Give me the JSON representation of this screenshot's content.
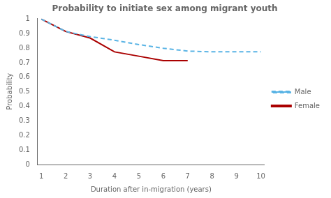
{
  "chart_data": {
    "type": "line",
    "title": "Probability to initiate sex among migrant youth",
    "xlabel": "Duration after in-migration (years)",
    "ylabel": "Probability",
    "xlim": [
      0.85,
      10.15
    ],
    "ylim": [
      0,
      1.005
    ],
    "xticks": [
      1,
      2,
      3,
      4,
      5,
      6,
      7,
      8,
      9,
      10
    ],
    "yticks": [
      0,
      0.1,
      0.2,
      0.3,
      0.4,
      0.5,
      0.6,
      0.7,
      0.8,
      0.9,
      1
    ],
    "grid": false,
    "legend": "right",
    "series": [
      {
        "name": "Male",
        "color": "#5ab4e5",
        "line_style": "dashed",
        "x": [
          1,
          2,
          3,
          4,
          5,
          6,
          7,
          8,
          9,
          10
        ],
        "values": [
          1.0,
          0.915,
          0.88,
          0.855,
          0.825,
          0.8,
          0.78,
          0.775,
          0.775,
          0.775
        ]
      },
      {
        "name": "Female",
        "color": "#aa0000",
        "line_style": "solid",
        "x": [
          1,
          2,
          3,
          4,
          5,
          6,
          7
        ],
        "values": [
          1.0,
          0.915,
          0.87,
          0.775,
          0.745,
          0.715,
          0.715
        ]
      }
    ]
  }
}
